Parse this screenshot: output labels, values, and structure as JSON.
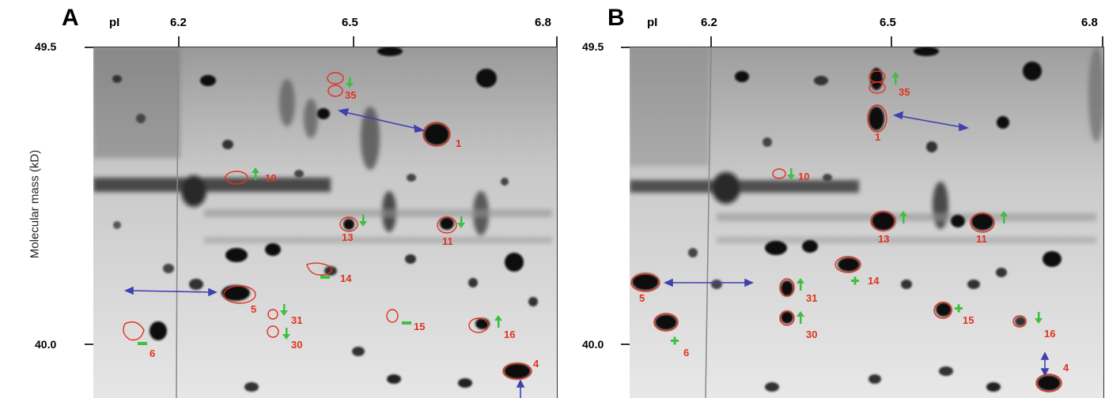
{
  "figure": {
    "y_axis_label": "Molecular mass (kD)",
    "colors": {
      "outline": "#e0321e",
      "label": "#e0321e",
      "change_marker": "#3fbf3f",
      "shift_arrow": "#4040b0"
    },
    "panels": [
      {
        "letter": "A",
        "pi_label": "pI",
        "x_ticks": [
          "6.2",
          "6.5",
          "6.8"
        ],
        "y_ticks": [
          "49.5",
          "40.0"
        ],
        "spots": [
          {
            "id": "35",
            "marker": "down"
          },
          {
            "id": "1",
            "marker": "none"
          },
          {
            "id": "10",
            "marker": "up"
          },
          {
            "id": "13",
            "marker": "down"
          },
          {
            "id": "11",
            "marker": "down"
          },
          {
            "id": "14",
            "marker": "minus"
          },
          {
            "id": "5",
            "marker": "none"
          },
          {
            "id": "31",
            "marker": "down"
          },
          {
            "id": "30",
            "marker": "down"
          },
          {
            "id": "15",
            "marker": "minus"
          },
          {
            "id": "16",
            "marker": "up"
          },
          {
            "id": "6",
            "marker": "minus"
          },
          {
            "id": "4",
            "marker": "none"
          }
        ]
      },
      {
        "letter": "B",
        "pi_label": "pI",
        "x_ticks": [
          "6.2",
          "6.5",
          "6.8"
        ],
        "y_ticks": [
          "49.5",
          "40.0"
        ],
        "spots": [
          {
            "id": "35",
            "marker": "up"
          },
          {
            "id": "1",
            "marker": "none"
          },
          {
            "id": "10",
            "marker": "down"
          },
          {
            "id": "13",
            "marker": "up"
          },
          {
            "id": "11",
            "marker": "up"
          },
          {
            "id": "14",
            "marker": "plus"
          },
          {
            "id": "5",
            "marker": "none"
          },
          {
            "id": "31",
            "marker": "up"
          },
          {
            "id": "30",
            "marker": "up"
          },
          {
            "id": "15",
            "marker": "plus"
          },
          {
            "id": "16",
            "marker": "down"
          },
          {
            "id": "6",
            "marker": "plus"
          },
          {
            "id": "4",
            "marker": "none"
          }
        ]
      }
    ]
  }
}
